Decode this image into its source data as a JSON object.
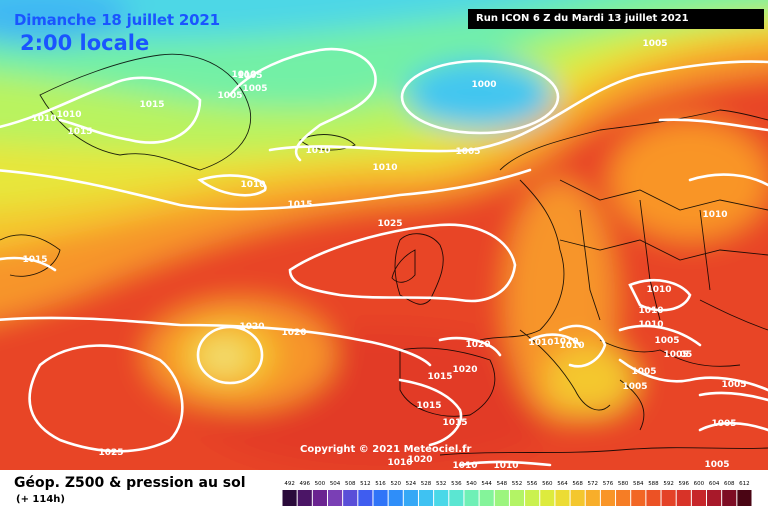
{
  "header": {
    "date": "Dimanche 18 juillet 2021",
    "time": "2:00 locale",
    "run": "Run ICON 6 Z du Mardi 13 juillet 2021"
  },
  "footer": {
    "caption": "Géop. Z500 & pression au sol",
    "lead_time": "(+ 114h)"
  },
  "copyright": "Copyright © 2021 Meteociel.fr",
  "color_scale": {
    "values": [
      "492",
      "496",
      "500",
      "504",
      "508",
      "512",
      "516",
      "520",
      "524",
      "528",
      "532",
      "536",
      "540",
      "544",
      "548",
      "552",
      "556",
      "560",
      "564",
      "568",
      "572",
      "576",
      "580",
      "584",
      "588",
      "592",
      "596",
      "600",
      "604",
      "608",
      "612"
    ],
    "colors": [
      "#2a0a3a",
      "#4b1566",
      "#6a2390",
      "#7a3fb5",
      "#5a4ed8",
      "#3f5df0",
      "#2f74f8",
      "#2f8ef9",
      "#35a8f6",
      "#3fc2f2",
      "#4ad8e8",
      "#5be6d2",
      "#6ff0b6",
      "#84f49a",
      "#9cf57e",
      "#b3f465",
      "#caf14f",
      "#ddeb3d",
      "#ecdc34",
      "#f4c72e",
      "#f8ae2a",
      "#f99527",
      "#f67d25",
      "#f26624",
      "#ec5225",
      "#e44227",
      "#d83328",
      "#c7262a",
      "#a8192a",
      "#7e0c23",
      "#4a0514"
    ]
  },
  "isobars": [
    {
      "text": "1000",
      "pos": "north-atlantic-low"
    },
    {
      "text": "1005",
      "pos": "north-atlantic-low-ring"
    },
    {
      "text": "1005",
      "pos": "norway-sea"
    },
    {
      "text": "1005",
      "pos": "greenland-north"
    },
    {
      "text": "1005",
      "pos": "greenland-north-2"
    },
    {
      "text": "1005",
      "pos": "greenland-north-3"
    },
    {
      "text": "1010",
      "pos": "greenland-south"
    },
    {
      "text": "1010",
      "pos": "labrador"
    },
    {
      "text": "1010",
      "pos": "iceland"
    },
    {
      "text": "1010",
      "pos": "iceland-east"
    },
    {
      "text": "1010",
      "pos": "atlantic-mid"
    },
    {
      "text": "1010",
      "pos": "greenland-north-4"
    },
    {
      "text": "1015",
      "pos": "greenland-mid"
    },
    {
      "text": "1015",
      "pos": "greenland-mid-2"
    },
    {
      "text": "1015",
      "pos": "atlantic-north"
    },
    {
      "text": "1015",
      "pos": "labrador-sea"
    },
    {
      "text": "1025",
      "pos": "ireland-high"
    },
    {
      "text": "1020",
      "pos": "azores-high"
    },
    {
      "text": "1020",
      "pos": "azores-high-2"
    },
    {
      "text": "1020",
      "pos": "biscay"
    },
    {
      "text": "1020",
      "pos": "iberia-north"
    },
    {
      "text": "1015",
      "pos": "iberia-mid"
    },
    {
      "text": "1015",
      "pos": "iberia-south"
    },
    {
      "text": "1015",
      "pos": "gibraltar"
    },
    {
      "text": "1025",
      "pos": "atlantic-south"
    },
    {
      "text": "1010",
      "pos": "morocco"
    },
    {
      "text": "1020",
      "pos": "morocco-2"
    },
    {
      "text": "1010",
      "pos": "algeria"
    },
    {
      "text": "1010",
      "pos": "algeria-2"
    },
    {
      "text": "1010",
      "pos": "alps"
    },
    {
      "text": "1010",
      "pos": "balkans"
    },
    {
      "text": "1010",
      "pos": "baltic"
    },
    {
      "text": "1010",
      "pos": "poland"
    },
    {
      "text": "1010",
      "pos": "belarus"
    },
    {
      "text": "1010",
      "pos": "russia-west"
    },
    {
      "text": "1005",
      "pos": "balkans-south"
    },
    {
      "text": "1005",
      "pos": "greece"
    },
    {
      "text": "1005",
      "pos": "aegean"
    },
    {
      "text": "1005",
      "pos": "turkey-west"
    },
    {
      "text": "1005",
      "pos": "turkey"
    },
    {
      "text": "1005",
      "pos": "levant"
    },
    {
      "text": "1005",
      "pos": "black-sea"
    },
    {
      "text": "1010",
      "pos": "italy"
    },
    {
      "text": "05",
      "pos": "bulgaria"
    }
  ]
}
